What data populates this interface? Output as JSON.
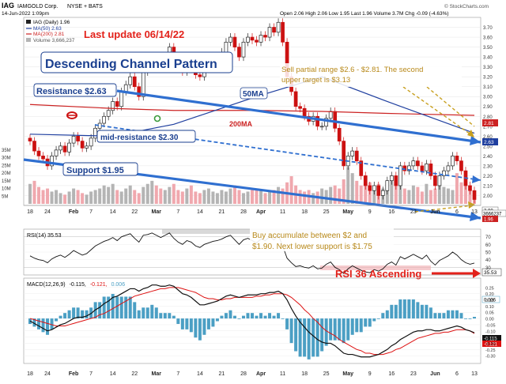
{
  "header": {
    "ticker": "IAG",
    "company": "IAMGOLD Corp.",
    "exchange": "NYSE + BATS",
    "datetime": "14-Jun-2022 1:09pm",
    "ohlc": "Open 2.06  High 2.06  Low 1.95  Last 1.96  Volume 3.7M  Chg -0.09 (-4.63%)",
    "copyright": "© StockCharts.com"
  },
  "legend": {
    "price": "IAG (Daily) 1.96",
    "ma50": "MA(50) 2.63",
    "ma200": "MA(200) 2.81",
    "volume": "Volume 3,666,237"
  },
  "colors": {
    "ma50": "#1f3f9f",
    "ma200": "#cc2222",
    "up_candle": "#222222",
    "down_candle": "#cc1111",
    "channel": "#2f6fd0",
    "vol_up": "#b4b4b4",
    "vol_down": "#f0a8ae",
    "macd_hist": "#4b9fc4",
    "annotation_red": "#e3221b",
    "annotation_gold": "#c8a020"
  },
  "annotations": {
    "last_update": "Last update 06/14/22",
    "pattern": "Descending Channel Pattern",
    "resistance": "Resistance $2.63",
    "mid_resistance": "mid-resistance $2.30",
    "support": "Support $1.95",
    "ma50_label": "50MA",
    "ma200_label": "200MA",
    "sell_line1": "Sell partial range $2.6 - $2.81. The second",
    "sell_line2": "upper target is $3.13",
    "buy_line1": "Buy accumulate between $2 and",
    "buy_line2": "$1.90. Next lower support is $1.75",
    "rsi_note": "RSI 36 Ascending"
  },
  "price_labels": {
    "ma200_badge": "2.81",
    "ma50_badge": "2.63",
    "last_badge": "1.96",
    "alt_badge": "2.00",
    "volume_badge": "3666237"
  },
  "rsi": {
    "title": "RSI(14) 35.53",
    "last_badge": "35.53"
  },
  "macd": {
    "title_prefix": "MACD(12,26,9)",
    "title_macd": "-0.115,",
    "title_signal": "-0.121,",
    "title_hist": "0.006",
    "macd_badge": "-0.115",
    "signal_badge": "-0.121",
    "hist_badge": "0.006"
  },
  "x_axis_labels": [
    "18",
    "24",
    "Feb",
    "7",
    "14",
    "22",
    "Mar",
    "7",
    "14",
    "21",
    "28",
    "Apr",
    "11",
    "18",
    "25",
    "May",
    "9",
    "16",
    "23",
    "Jun",
    "6",
    "13"
  ],
  "chart_data": [
    {
      "type": "candlestick",
      "title": "IAG IAMGOLD Corp. NYSE + BATS",
      "x": [
        "2022-01-18",
        "2022-01-19",
        "2022-01-20",
        "2022-01-21",
        "2022-01-24",
        "2022-01-25",
        "2022-01-26",
        "2022-01-27",
        "2022-01-28",
        "2022-01-31",
        "2022-02-01",
        "2022-02-02",
        "2022-02-03",
        "2022-02-04",
        "2022-02-07",
        "2022-02-08",
        "2022-02-09",
        "2022-02-10",
        "2022-02-11",
        "2022-02-14",
        "2022-02-15",
        "2022-02-16",
        "2022-02-17",
        "2022-02-18",
        "2022-02-22",
        "2022-02-23",
        "2022-02-24",
        "2022-02-25",
        "2022-02-28",
        "2022-03-01",
        "2022-03-02",
        "2022-03-03",
        "2022-03-04",
        "2022-03-07",
        "2022-03-08",
        "2022-03-09",
        "2022-03-10",
        "2022-03-11",
        "2022-03-14",
        "2022-03-15",
        "2022-03-16",
        "2022-03-17",
        "2022-03-18",
        "2022-03-21",
        "2022-03-22",
        "2022-03-23",
        "2022-03-24",
        "2022-03-25",
        "2022-03-28",
        "2022-03-29",
        "2022-03-30",
        "2022-03-31",
        "2022-04-01",
        "2022-04-04",
        "2022-04-05",
        "2022-04-06",
        "2022-04-07",
        "2022-04-08",
        "2022-04-11",
        "2022-04-12",
        "2022-04-13",
        "2022-04-14",
        "2022-04-18",
        "2022-04-19",
        "2022-04-20",
        "2022-04-21",
        "2022-04-22",
        "2022-04-25",
        "2022-04-26",
        "2022-04-27",
        "2022-04-28",
        "2022-04-29",
        "2022-05-02",
        "2022-05-03",
        "2022-05-04",
        "2022-05-05",
        "2022-05-06",
        "2022-05-09",
        "2022-05-10",
        "2022-05-11",
        "2022-05-12",
        "2022-05-13",
        "2022-05-16",
        "2022-05-17",
        "2022-05-18",
        "2022-05-19",
        "2022-05-20",
        "2022-05-23",
        "2022-05-24",
        "2022-05-25",
        "2022-05-26",
        "2022-05-27",
        "2022-05-31",
        "2022-06-01",
        "2022-06-02",
        "2022-06-03",
        "2022-06-06",
        "2022-06-07",
        "2022-06-08",
        "2022-06-09",
        "2022-06-10",
        "2022-06-13",
        "2022-06-14"
      ],
      "close": [
        2.55,
        2.45,
        2.4,
        2.37,
        2.3,
        2.4,
        2.46,
        2.5,
        2.44,
        2.53,
        2.6,
        2.55,
        2.48,
        2.5,
        2.58,
        2.68,
        2.73,
        2.8,
        2.86,
        2.95,
        2.9,
        3.05,
        3.12,
        3.2,
        3.1,
        3.0,
        3.25,
        3.28,
        3.35,
        3.33,
        3.3,
        3.38,
        3.5,
        3.4,
        3.3,
        3.25,
        3.35,
        3.3,
        3.22,
        3.2,
        3.28,
        3.33,
        3.38,
        3.4,
        3.45,
        3.55,
        3.6,
        3.5,
        3.4,
        3.55,
        3.6,
        3.57,
        3.55,
        3.62,
        3.6,
        3.7,
        3.65,
        3.75,
        3.55,
        3.2,
        3.05,
        2.9,
        2.88,
        2.8,
        2.75,
        2.8,
        2.7,
        2.7,
        2.78,
        2.85,
        2.68,
        2.55,
        2.3,
        2.4,
        2.45,
        2.35,
        2.2,
        2.1,
        2.05,
        2.1,
        2.0,
        2.05,
        2.15,
        2.2,
        2.1,
        2.3,
        2.25,
        2.3,
        2.35,
        2.3,
        2.25,
        2.32,
        2.2,
        2.1,
        2.2,
        2.25,
        2.3,
        2.4,
        2.35,
        2.25,
        2.1,
        2.05,
        1.96
      ],
      "ylim": [
        1.9,
        3.8
      ],
      "y_ticks": [
        2.0,
        2.1,
        2.2,
        2.3,
        2.4,
        2.5,
        2.6,
        2.7,
        2.8,
        2.9,
        3.0,
        3.1,
        3.2,
        3.3,
        3.4,
        3.5,
        3.6,
        3.7
      ]
    },
    {
      "type": "line",
      "title": "IAG (Daily) moving averages",
      "series": [
        {
          "name": "MA(50)",
          "x": [
            "2022-01-18",
            "2022-02-14",
            "2022-03-07",
            "2022-04-01",
            "2022-04-25",
            "2022-05-16",
            "2022-06-14"
          ],
          "values": [
            2.62,
            2.6,
            2.72,
            3.0,
            3.2,
            2.95,
            2.63
          ]
        },
        {
          "name": "MA(200)",
          "x": [
            "2022-01-18",
            "2022-02-14",
            "2022-03-07",
            "2022-04-01",
            "2022-04-25",
            "2022-05-16",
            "2022-06-14"
          ],
          "values": [
            2.92,
            2.88,
            2.86,
            2.86,
            2.85,
            2.83,
            2.81
          ]
        }
      ]
    },
    {
      "type": "bar",
      "title": "Volume",
      "values": [
        13,
        15,
        11,
        9,
        10,
        8,
        9,
        7,
        6,
        8,
        10,
        9,
        7,
        6,
        8,
        9,
        10,
        12,
        11,
        13,
        9,
        8,
        10,
        12,
        9,
        7,
        11,
        13,
        15,
        12,
        10,
        9,
        11,
        13,
        9,
        8,
        10,
        12,
        8,
        7,
        9,
        10,
        8,
        7,
        9,
        8,
        10,
        12,
        9,
        7,
        8,
        9,
        10,
        9,
        7,
        8,
        9,
        11,
        10,
        14,
        18,
        12,
        9,
        8,
        9,
        7,
        8,
        10,
        9,
        11,
        12,
        10,
        16,
        24,
        20,
        15,
        12,
        18,
        14,
        11,
        13,
        10,
        9,
        16,
        12,
        14,
        10,
        9,
        12,
        11,
        8,
        13,
        9,
        10,
        12,
        11,
        10,
        9,
        20,
        14,
        12,
        9,
        4
      ],
      "y_ticks_label": [
        "5M",
        "10M",
        "15M",
        "20M",
        "25M",
        "30M",
        "35M"
      ],
      "ylim": [
        0,
        35
      ]
    },
    {
      "type": "line",
      "title": "RSI(14) 35.53",
      "values": [
        45,
        42,
        40,
        39,
        36,
        41,
        44,
        46,
        43,
        47,
        52,
        49,
        46,
        48,
        53,
        58,
        61,
        64,
        66,
        69,
        65,
        70,
        72,
        74,
        68,
        63,
        72,
        73,
        75,
        72,
        69,
        72,
        75,
        68,
        63,
        60,
        65,
        63,
        58,
        56,
        60,
        62,
        64,
        65,
        67,
        70,
        72,
        66,
        60,
        66,
        68,
        65,
        62,
        67,
        65,
        70,
        66,
        72,
        58,
        42,
        36,
        31,
        32,
        30,
        29,
        32,
        28,
        29,
        34,
        37,
        30,
        27,
        22,
        28,
        32,
        29,
        26,
        24,
        23,
        27,
        25,
        28,
        34,
        37,
        33,
        44,
        41,
        44,
        47,
        44,
        41,
        46,
        38,
        33,
        39,
        42,
        45,
        50,
        46,
        40,
        36,
        34,
        35.53
      ],
      "ylim": [
        20,
        80
      ],
      "y_ticks": [
        30,
        40,
        50,
        60,
        70
      ]
    },
    {
      "type": "bar",
      "title": "MACD(12,26,9) -0.115, -0.121, 0.006",
      "series": [
        {
          "name": "MACD",
          "values": [
            -0.02,
            -0.04,
            -0.06,
            -0.08,
            -0.1,
            -0.09,
            -0.07,
            -0.05,
            -0.04,
            -0.02,
            0.0,
            0.01,
            0.01,
            0.02,
            0.04,
            0.07,
            0.09,
            0.12,
            0.14,
            0.17,
            0.18,
            0.2,
            0.22,
            0.24,
            0.24,
            0.22,
            0.24,
            0.25,
            0.27,
            0.27,
            0.26,
            0.26,
            0.27,
            0.26,
            0.23,
            0.2,
            0.19,
            0.17,
            0.14,
            0.11,
            0.11,
            0.12,
            0.13,
            0.14,
            0.16,
            0.18,
            0.19,
            0.18,
            0.17,
            0.18,
            0.19,
            0.19,
            0.19,
            0.2,
            0.2,
            0.21,
            0.21,
            0.22,
            0.2,
            0.15,
            0.08,
            0.02,
            -0.03,
            -0.07,
            -0.11,
            -0.14,
            -0.17,
            -0.19,
            -0.2,
            -0.2,
            -0.22,
            -0.25,
            -0.28,
            -0.29,
            -0.29,
            -0.3,
            -0.31,
            -0.31,
            -0.31,
            -0.3,
            -0.29,
            -0.27,
            -0.25,
            -0.22,
            -0.2,
            -0.17,
            -0.15,
            -0.13,
            -0.11,
            -0.1,
            -0.1,
            -0.09,
            -0.09,
            -0.1,
            -0.1,
            -0.09,
            -0.08,
            -0.07,
            -0.06,
            -0.07,
            -0.09,
            -0.1,
            -0.115
          ]
        },
        {
          "name": "Signal",
          "values": [
            0.0,
            -0.01,
            -0.02,
            -0.03,
            -0.04,
            -0.05,
            -0.06,
            -0.06,
            -0.06,
            -0.05,
            -0.04,
            -0.03,
            -0.02,
            -0.01,
            0.0,
            0.01,
            0.03,
            0.04,
            0.06,
            0.08,
            0.1,
            0.12,
            0.14,
            0.16,
            0.18,
            0.19,
            0.2,
            0.21,
            0.22,
            0.23,
            0.24,
            0.24,
            0.25,
            0.25,
            0.25,
            0.24,
            0.23,
            0.22,
            0.21,
            0.19,
            0.17,
            0.16,
            0.16,
            0.15,
            0.15,
            0.16,
            0.16,
            0.17,
            0.17,
            0.17,
            0.17,
            0.17,
            0.18,
            0.18,
            0.19,
            0.19,
            0.2,
            0.2,
            0.2,
            0.19,
            0.17,
            0.14,
            0.11,
            0.07,
            0.04,
            0.0,
            -0.03,
            -0.07,
            -0.1,
            -0.12,
            -0.14,
            -0.17,
            -0.19,
            -0.21,
            -0.23,
            -0.25,
            -0.26,
            -0.28,
            -0.28,
            -0.29,
            -0.29,
            -0.29,
            -0.28,
            -0.27,
            -0.25,
            -0.24,
            -0.22,
            -0.2,
            -0.18,
            -0.16,
            -0.15,
            -0.14,
            -0.13,
            -0.12,
            -0.12,
            -0.11,
            -0.11,
            -0.1,
            -0.09,
            -0.09,
            -0.09,
            -0.1,
            -0.121
          ]
        }
      ],
      "ylim": [
        -0.35,
        0.3
      ],
      "y_ticks": [
        -0.3,
        -0.25,
        -0.2,
        -0.15,
        -0.1,
        -0.05,
        0.0,
        0.05,
        0.1,
        0.15,
        0.2,
        0.25
      ]
    }
  ]
}
